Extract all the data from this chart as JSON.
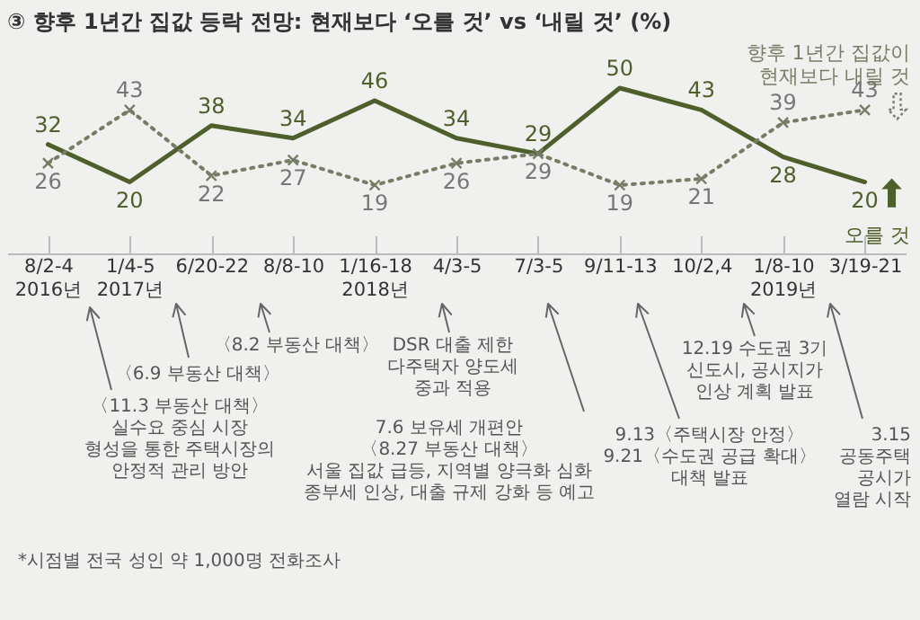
{
  "chart_data": {
    "type": "line",
    "title": "③ 향후 1년간 집값 등락 전망: 현재보다 ‘오를 것’ vs ‘내릴 것’ (%)",
    "categories": [
      "8/2-4\n2016년",
      "1/4-5\n2017년",
      "6/20-22",
      "8/8-10",
      "1/16-18\n2018년",
      "4/3-5",
      "7/3-5",
      "9/11-13",
      "10/2,4",
      "1/8-10\n2019년",
      "3/19-21"
    ],
    "series": [
      {
        "name": "오를 것",
        "color": "#4e5f2c",
        "line_style": "solid",
        "marker": "none",
        "values": [
          32,
          20,
          38,
          34,
          46,
          34,
          29,
          50,
          43,
          28,
          20
        ]
      },
      {
        "name": "향후 1년간 집값이\n현재보다 내릴 것",
        "color": "#767d66",
        "line_style": "dotted",
        "marker": "cross",
        "values": [
          26,
          43,
          22,
          27,
          19,
          26,
          29,
          19,
          21,
          39,
          43
        ]
      }
    ],
    "data_labels": true,
    "grid": false,
    "annotations": [
      "〈11.3 부동산 대책〉\n실수요 중심 시장\n형성을 통한 주택시장의\n안정적 관리 방안",
      "〈6.9 부동산 대책〉",
      "〈8.2 부동산 대책〉",
      "DSR 대출 제한\n다주택자 양도세\n중과 적용",
      "7.6 보유세 개편안\n〈8.27 부동산 대책〉\n서울 집값 급등, 지역별 양극화 심화\n종부세 인상, 대출 규제 강화 등 예고",
      "9.13〈주택시장 안정〉\n9.21〈수도권 공급 확대〉\n대책 발표",
      "12.19 수도권 3기\n신도시, 공시지가\n인상 계획 발표",
      "3.15\n공동주택\n공시가\n열람 시작",
      "*시점별 전국 성인 약 1,000명 전화조사"
    ]
  }
}
